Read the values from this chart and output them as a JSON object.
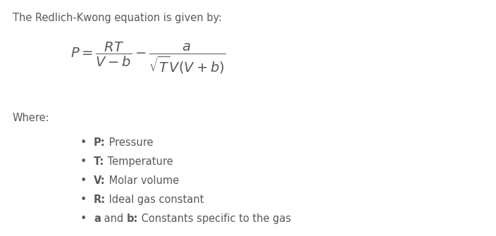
{
  "background_color": "#ffffff",
  "text_color": "#595959",
  "intro_text": "The Redlich-Kwong equation is given by:",
  "where_text": "Where:",
  "intro_fontsize": 10.5,
  "where_fontsize": 10.5,
  "bullet_fontsize": 10.5,
  "eq_fontsize": 14,
  "figsize": [
    7.04,
    3.35
  ],
  "dpi": 100,
  "bullet_items": [
    [
      [
        "P:",
        true
      ],
      [
        " Pressure",
        false
      ]
    ],
    [
      [
        "T:",
        true
      ],
      [
        " Temperature",
        false
      ]
    ],
    [
      [
        "V:",
        true
      ],
      [
        " Molar volume",
        false
      ]
    ],
    [
      [
        "R:",
        true
      ],
      [
        " Ideal gas constant",
        false
      ]
    ],
    [
      [
        "a",
        true
      ],
      [
        " and ",
        false
      ],
      [
        "b:",
        true
      ],
      [
        " Constants specific to the gas",
        false
      ]
    ]
  ]
}
